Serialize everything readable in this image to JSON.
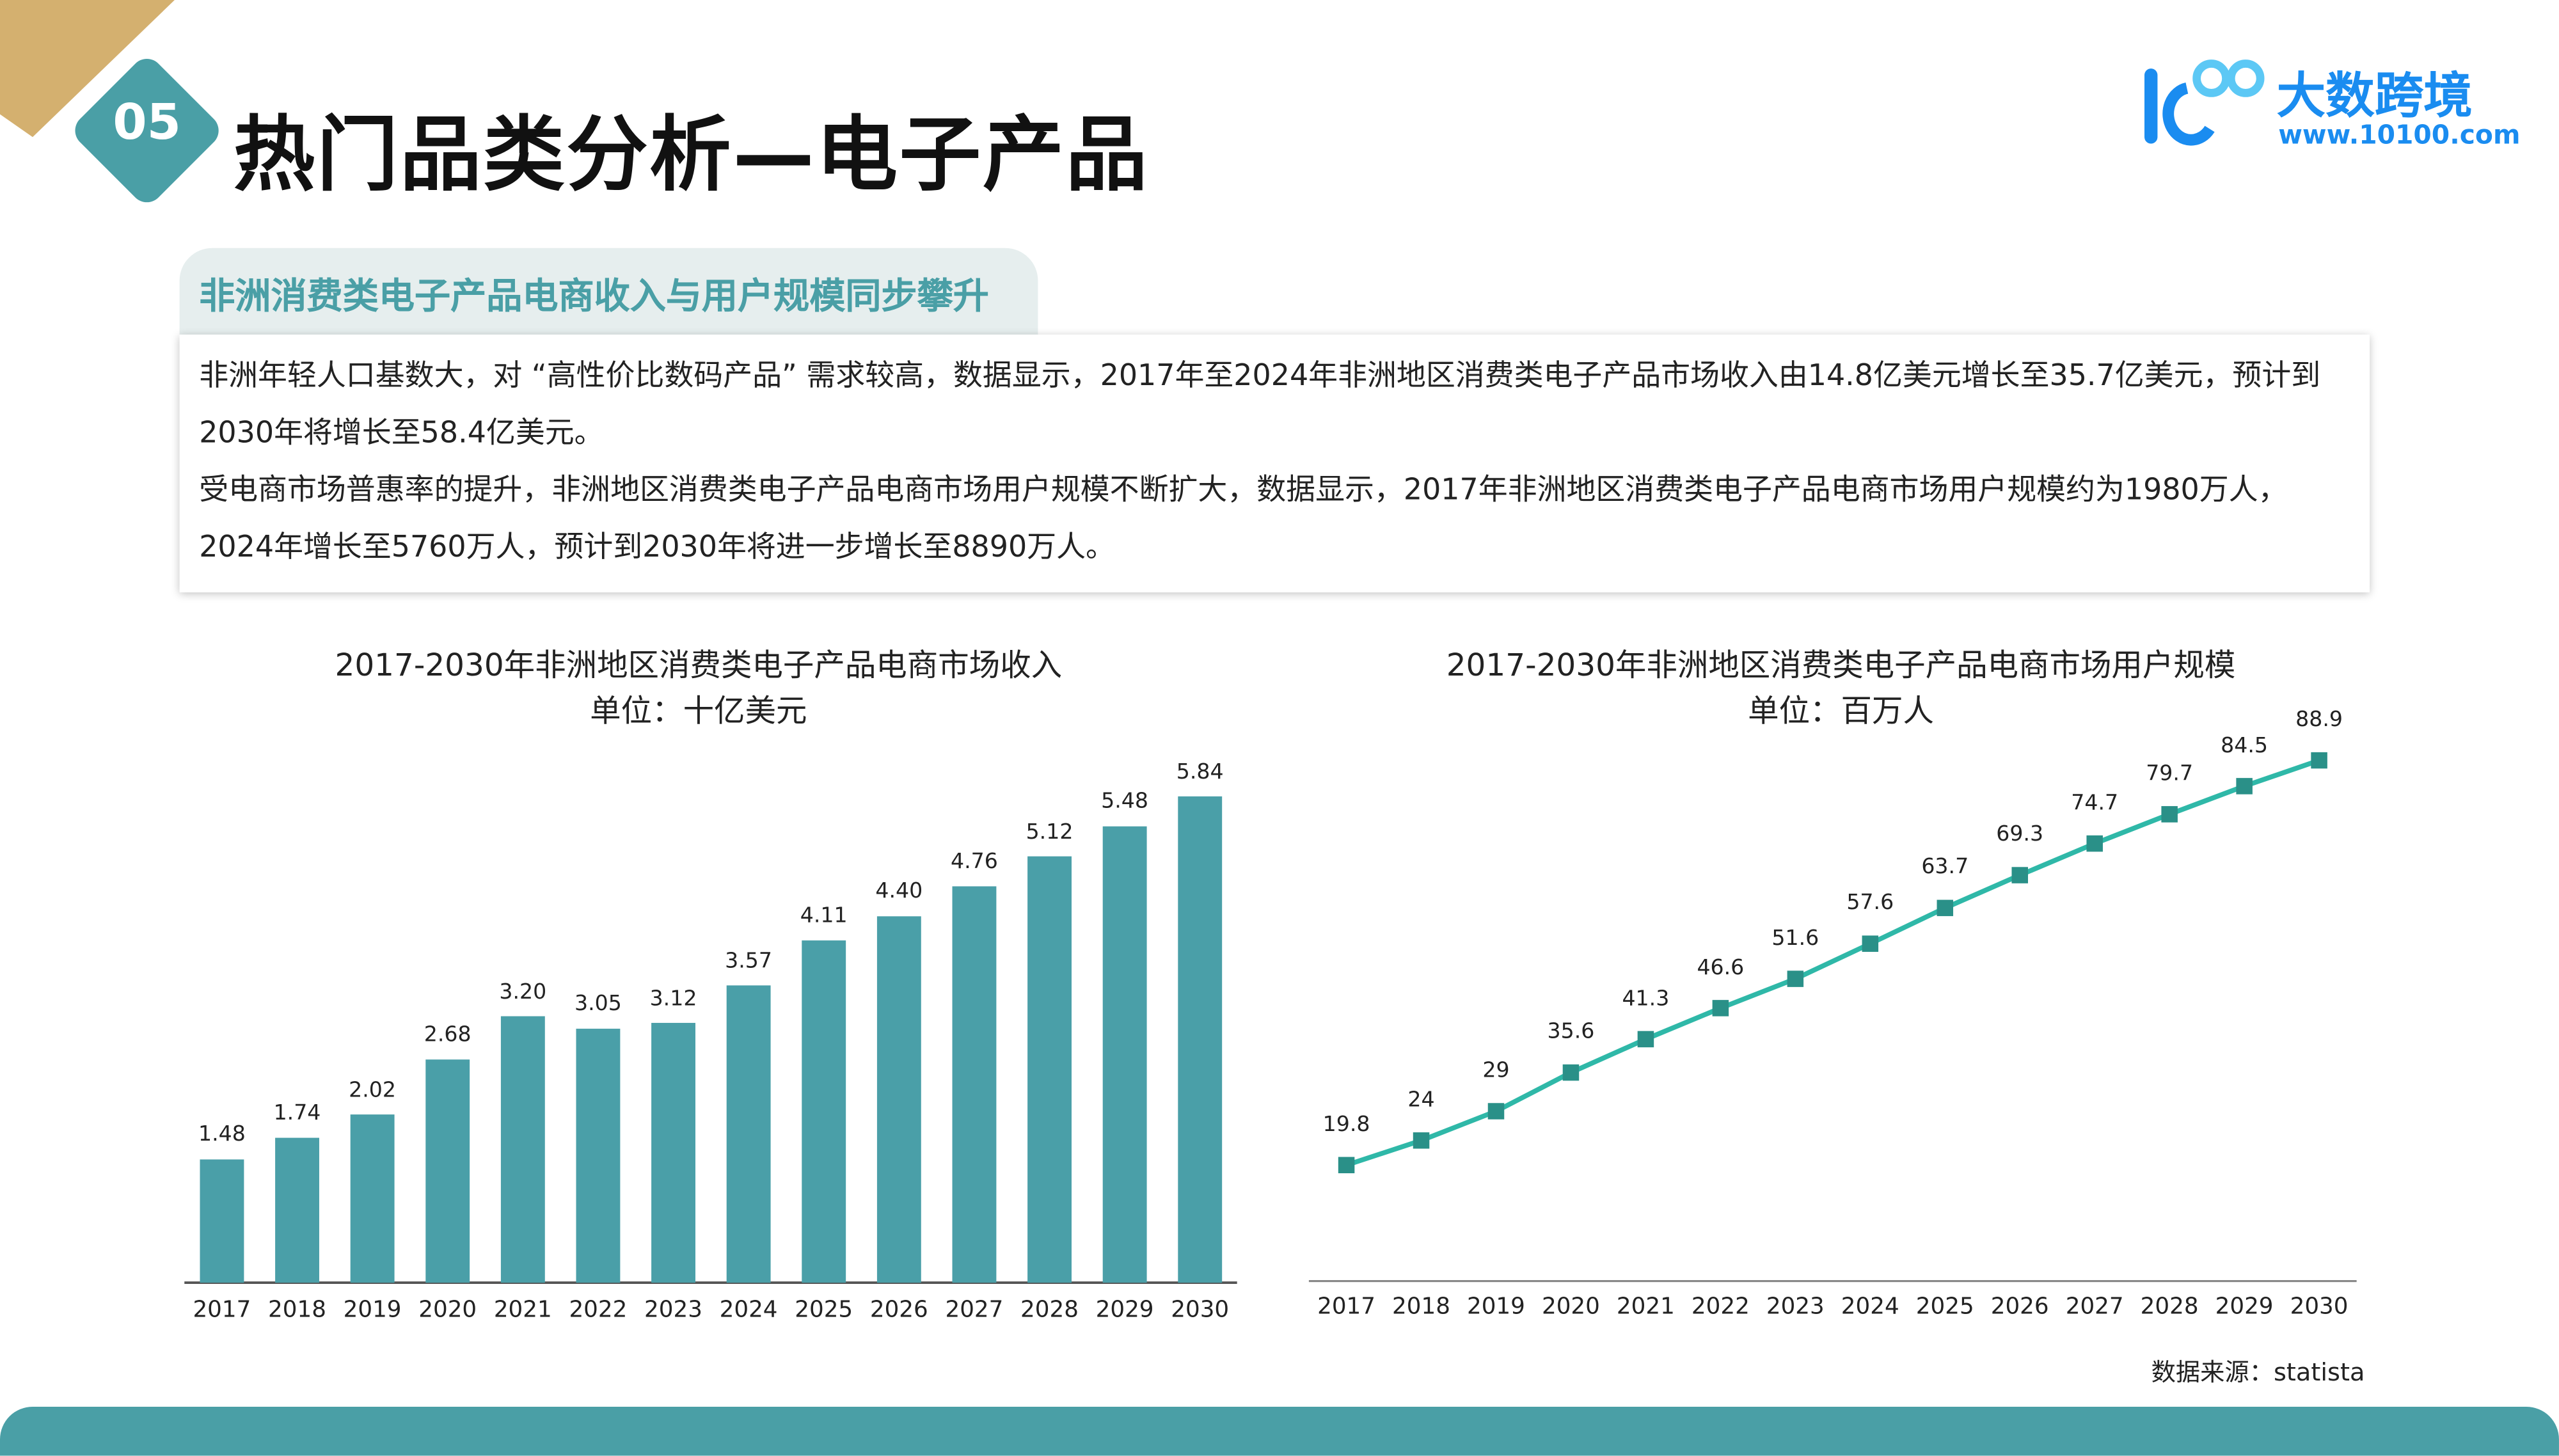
{
  "header": {
    "section_number": "05",
    "title": "热门品类分析—电子产品"
  },
  "logo": {
    "name": "大数跨境",
    "url": "www.10100.com",
    "mark": "100"
  },
  "summary": {
    "heading": "非洲消费类电子产品电商收入与用户规模同步攀升",
    "paragraphs": [
      "非洲年轻人口基数大，对 “高性价比数码产品” 需求较高，数据显示，2017年至2024年非洲地区消费类电子产品市场收入由14.8亿美元增长至35.7亿美元，预计到2030年将增长至58.4亿美元。",
      "受电商市场普惠率的提升，非洲地区消费类电子产品电商市场用户规模不断扩大，数据显示，2017年非洲地区消费类电子产品电商市场用户规模约为1980万人，2024年增长至5760万人，预计到2030年将进一步增长至8890万人。"
    ]
  },
  "chart_data": [
    {
      "type": "bar",
      "title": "2017-2030年非洲地区消费类电子产品电商市场收入",
      "subtitle": "单位：十亿美元",
      "categories": [
        "2017",
        "2018",
        "2019",
        "2020",
        "2021",
        "2022",
        "2023",
        "2024",
        "2025",
        "2026",
        "2027",
        "2028",
        "2029",
        "2030"
      ],
      "values": [
        1.48,
        1.74,
        2.02,
        2.68,
        3.2,
        3.05,
        3.12,
        3.57,
        4.11,
        4.4,
        4.76,
        5.12,
        5.48,
        5.84
      ],
      "labels": [
        "1.48",
        "1.74",
        "2.02",
        "2.68",
        "3.20",
        "3.05",
        "3.12",
        "3.57",
        "4.11",
        "4.40",
        "4.76",
        "5.12",
        "5.48",
        "5.84"
      ],
      "color": "#4a9fa8",
      "ylim": [
        0,
        5.84
      ]
    },
    {
      "type": "line",
      "title": "2017-2030年非洲地区消费类电子产品电商市场用户规模",
      "subtitle": "单位：百万人",
      "categories": [
        "2017",
        "2018",
        "2019",
        "2020",
        "2021",
        "2022",
        "2023",
        "2024",
        "2025",
        "2026",
        "2027",
        "2028",
        "2029",
        "2030"
      ],
      "values": [
        19.8,
        24,
        29,
        35.6,
        41.3,
        46.6,
        51.6,
        57.6,
        63.7,
        69.3,
        74.7,
        79.7,
        84.5,
        88.9
      ],
      "labels": [
        "19.8",
        "24",
        "29",
        "35.6",
        "41.3",
        "46.6",
        "51.6",
        "57.6",
        "63.7",
        "69.3",
        "74.7",
        "79.7",
        "84.5",
        "88.9"
      ],
      "line_color": "#2fb8a8",
      "marker_color": "#2a9088",
      "ylim": [
        0,
        88.9
      ]
    }
  ],
  "source": "数据来源：statista",
  "colors": {
    "accent": "#4a9fa6",
    "gold": "#d4b06f",
    "logo": "#1a8cf0"
  }
}
